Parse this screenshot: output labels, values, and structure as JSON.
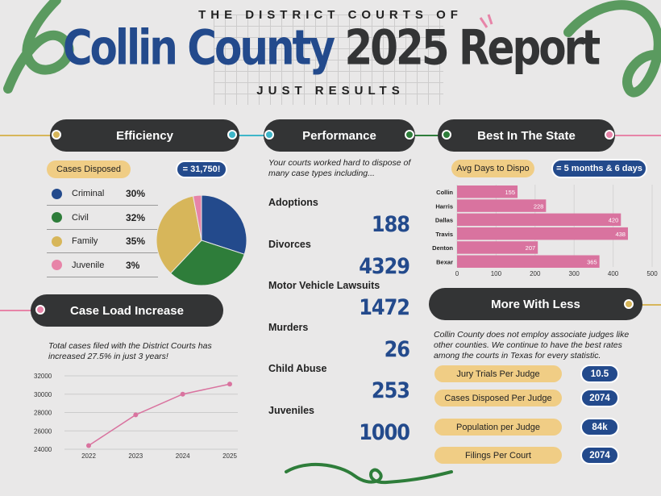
{
  "header": {
    "pretitle": "THE DISTRICT COURTS OF",
    "title_blue": "Collin County",
    "title_dark": "2025 Report",
    "subtitle": "JUST RESULTS"
  },
  "colors": {
    "blue": "#234a8c",
    "dark": "#333435",
    "yellow": "#f0cd85",
    "pink": "#d9739f",
    "green": "#2e7d3a",
    "gold": "#d7b65a"
  },
  "efficiency": {
    "title": "Efficiency",
    "label": "Cases Disposed",
    "total": "= 31,750!",
    "legend": [
      {
        "name": "Criminal",
        "pct": "30%",
        "color": "#234a8c"
      },
      {
        "name": "Civil",
        "pct": "32%",
        "color": "#2e7d3a"
      },
      {
        "name": "Family",
        "pct": "35%",
        "color": "#d7b65a"
      },
      {
        "name": "Juvenile",
        "pct": "3%",
        "color": "#e784a8"
      }
    ]
  },
  "caseload": {
    "title": "Case Load Increase",
    "text": "Total cases filed with the District Courts has increased 27.5% in just 3 years!"
  },
  "performance": {
    "title": "Performance",
    "text": "Your courts worked hard to dispose of many case types including...",
    "items": [
      {
        "label": "Adoptions",
        "value": "188"
      },
      {
        "label": "Divorces",
        "value": "4329"
      },
      {
        "label": "Motor Vehicle Lawsuits",
        "value": "1472"
      },
      {
        "label": "Murders",
        "value": "26"
      },
      {
        "label": "Child Abuse",
        "value": "253"
      },
      {
        "label": "Juveniles",
        "value": "1000"
      }
    ]
  },
  "best": {
    "title": "Best In The State",
    "label": "Avg Days to Dispo",
    "value": "= 5 months & 6 days"
  },
  "more": {
    "title": "More With Less",
    "text": "Collin County does not employ associate judges like other counties. We continue to have the best rates among the courts in Texas for every statistic.",
    "stats": [
      {
        "label": "Jury Trials Per Judge",
        "value": "10.5"
      },
      {
        "label": "Cases Disposed Per Judge",
        "value": "2074"
      },
      {
        "label": "Population per Judge",
        "value": "84k"
      },
      {
        "label": "Filings Per Court",
        "value": "2074"
      }
    ]
  },
  "chart_data": [
    {
      "type": "pie",
      "categories": [
        "Criminal",
        "Civil",
        "Family",
        "Juvenile"
      ],
      "values": [
        30,
        32,
        35,
        3
      ]
    },
    {
      "type": "line",
      "x": [
        "2022",
        "2023",
        "2024",
        "2025"
      ],
      "values": [
        24400,
        27750,
        30000,
        31100
      ],
      "ylim": [
        24000,
        32000
      ],
      "yticks": [
        "24000",
        "26000",
        "28000",
        "30000",
        "32000"
      ],
      "grid": true
    },
    {
      "type": "bar",
      "orientation": "horizontal",
      "categories": [
        "Collin",
        "Harris",
        "Dallas",
        "Travis",
        "Denton",
        "Bexar"
      ],
      "values": [
        155,
        228,
        420,
        438,
        207,
        365
      ],
      "xlim": [
        0,
        500
      ],
      "xticks": [
        "0",
        "100",
        "200",
        "300",
        "400",
        "500"
      ],
      "grid": true
    }
  ]
}
